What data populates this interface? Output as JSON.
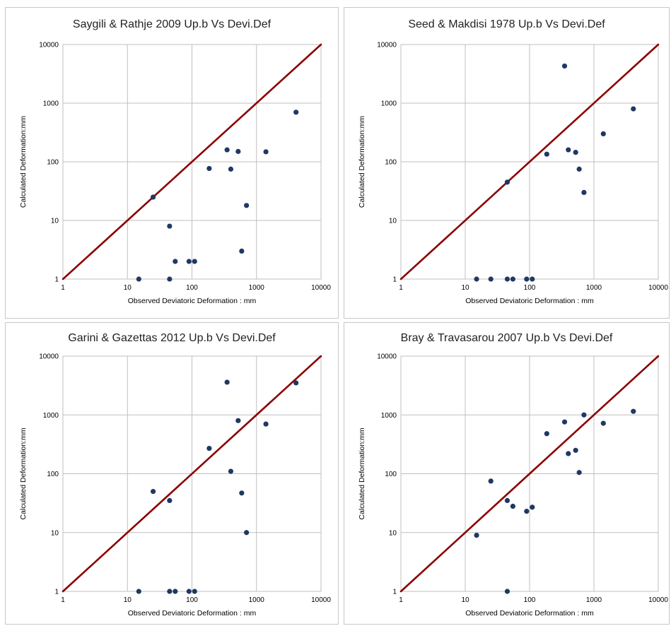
{
  "chart_data": [
    {
      "type": "scatter",
      "title": "Saygili & Rathje 2009 Up.b Vs Devi.Def",
      "xlabel": "Observed Deviatoric Deformation : mm",
      "ylabel": "Calculated Deformation:mm",
      "x_scale": "log",
      "y_scale": "log",
      "xlim": [
        1,
        10000
      ],
      "ylim": [
        1,
        10000
      ],
      "x_ticks": [
        "1",
        "10",
        "100",
        "1000",
        "10000"
      ],
      "y_ticks": [
        "1",
        "10",
        "100",
        "1000",
        "10000"
      ],
      "grid": true,
      "reference_line": {
        "type": "y=x",
        "color": "#8b0000"
      },
      "marker_color": "#1f3864",
      "points": [
        {
          "x": 15,
          "y": 1
        },
        {
          "x": 25,
          "y": 25
        },
        {
          "x": 45,
          "y": 8
        },
        {
          "x": 45,
          "y": 1
        },
        {
          "x": 55,
          "y": 2
        },
        {
          "x": 90,
          "y": 2
        },
        {
          "x": 110,
          "y": 2
        },
        {
          "x": 185,
          "y": 77
        },
        {
          "x": 350,
          "y": 160
        },
        {
          "x": 400,
          "y": 75
        },
        {
          "x": 520,
          "y": 150
        },
        {
          "x": 590,
          "y": 3
        },
        {
          "x": 700,
          "y": 18
        },
        {
          "x": 1400,
          "y": 148
        },
        {
          "x": 4100,
          "y": 700
        }
      ]
    },
    {
      "type": "scatter",
      "title": "Seed & Makdisi 1978 Up.b Vs Devi.Def",
      "xlabel": "Observed Deviatoric Deformation : mm",
      "ylabel": "Calculated Deformation:mm",
      "x_scale": "log",
      "y_scale": "log",
      "xlim": [
        1,
        10000
      ],
      "ylim": [
        1,
        10000
      ],
      "x_ticks": [
        "1",
        "10",
        "100",
        "1000",
        "10000"
      ],
      "y_ticks": [
        "1",
        "10",
        "100",
        "1000",
        "10000"
      ],
      "grid": true,
      "reference_line": {
        "type": "y=x",
        "color": "#8b0000"
      },
      "marker_color": "#1f3864",
      "points": [
        {
          "x": 15,
          "y": 1
        },
        {
          "x": 25,
          "y": 1
        },
        {
          "x": 45,
          "y": 45
        },
        {
          "x": 45,
          "y": 1
        },
        {
          "x": 55,
          "y": 1
        },
        {
          "x": 90,
          "y": 1
        },
        {
          "x": 110,
          "y": 1
        },
        {
          "x": 185,
          "y": 135
        },
        {
          "x": 350,
          "y": 4300
        },
        {
          "x": 400,
          "y": 160
        },
        {
          "x": 520,
          "y": 145
        },
        {
          "x": 590,
          "y": 75
        },
        {
          "x": 700,
          "y": 30
        },
        {
          "x": 1400,
          "y": 300
        },
        {
          "x": 4100,
          "y": 800
        }
      ]
    },
    {
      "type": "scatter",
      "title": "Garini & Gazettas 2012 Up.b Vs Devi.Def",
      "xlabel": "Observed Deviatoric Deformation : mm",
      "ylabel": "Calculated Deformation:mm",
      "x_scale": "log",
      "y_scale": "log",
      "xlim": [
        1,
        10000
      ],
      "ylim": [
        1,
        10000
      ],
      "x_ticks": [
        "1",
        "10",
        "100",
        "1000",
        "10000"
      ],
      "y_ticks": [
        "1",
        "10",
        "100",
        "1000",
        "10000"
      ],
      "grid": true,
      "reference_line": {
        "type": "y=x",
        "color": "#8b0000"
      },
      "marker_color": "#1f3864",
      "points": [
        {
          "x": 15,
          "y": 1
        },
        {
          "x": 25,
          "y": 50
        },
        {
          "x": 45,
          "y": 35
        },
        {
          "x": 45,
          "y": 1
        },
        {
          "x": 55,
          "y": 1
        },
        {
          "x": 90,
          "y": 1
        },
        {
          "x": 110,
          "y": 1
        },
        {
          "x": 185,
          "y": 270
        },
        {
          "x": 350,
          "y": 3600
        },
        {
          "x": 400,
          "y": 110
        },
        {
          "x": 520,
          "y": 800
        },
        {
          "x": 590,
          "y": 47
        },
        {
          "x": 700,
          "y": 10
        },
        {
          "x": 1400,
          "y": 700
        },
        {
          "x": 4100,
          "y": 3500
        }
      ]
    },
    {
      "type": "scatter",
      "title": "Bray & Travasarou 2007 Up.b Vs Devi.Def",
      "xlabel": "Observed Deviatoric Deformation : mm",
      "ylabel": "Calculated Deformation:mm",
      "x_scale": "log",
      "y_scale": "log",
      "xlim": [
        1,
        10000
      ],
      "ylim": [
        1,
        10000
      ],
      "x_ticks": [
        "1",
        "10",
        "100",
        "1000",
        "10000"
      ],
      "y_ticks": [
        "1",
        "10",
        "100",
        "1000",
        "10000"
      ],
      "grid": true,
      "reference_line": {
        "type": "y=x",
        "color": "#8b0000"
      },
      "marker_color": "#1f3864",
      "points": [
        {
          "x": 15,
          "y": 9
        },
        {
          "x": 25,
          "y": 75
        },
        {
          "x": 45,
          "y": 35
        },
        {
          "x": 45,
          "y": 1
        },
        {
          "x": 55,
          "y": 28
        },
        {
          "x": 90,
          "y": 23
        },
        {
          "x": 110,
          "y": 27
        },
        {
          "x": 185,
          "y": 480
        },
        {
          "x": 350,
          "y": 760
        },
        {
          "x": 400,
          "y": 220
        },
        {
          "x": 520,
          "y": 250
        },
        {
          "x": 590,
          "y": 105
        },
        {
          "x": 700,
          "y": 1000
        },
        {
          "x": 1400,
          "y": 720
        },
        {
          "x": 4100,
          "y": 1150
        }
      ]
    }
  ]
}
